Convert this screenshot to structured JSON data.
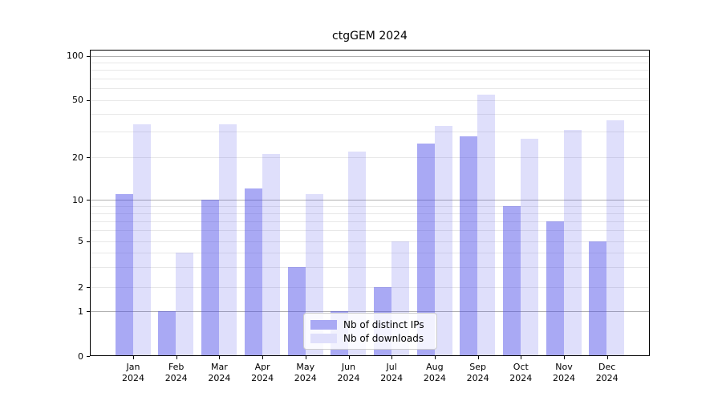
{
  "title": "ctgGEM 2024",
  "legend": {
    "items": [
      {
        "label": "Nb of distinct IPs",
        "color": "#a9a9f4"
      },
      {
        "label": "Nb of downloads",
        "color": "#dfdffb"
      }
    ]
  },
  "y_axis": {
    "tick_labels": [
      "100",
      "50",
      "20",
      "10",
      "5",
      "2",
      "1",
      "0"
    ]
  },
  "x_axis": {
    "months": [
      "Jan",
      "Feb",
      "Mar",
      "Apr",
      "May",
      "Jun",
      "Jul",
      "Aug",
      "Sep",
      "Oct",
      "Nov",
      "Dec"
    ],
    "year": "2024"
  },
  "chart_data": {
    "type": "bar",
    "title": "ctgGEM 2024",
    "categories": [
      "Jan 2024",
      "Feb 2024",
      "Mar 2024",
      "Apr 2024",
      "May 2024",
      "Jun 2024",
      "Jul 2024",
      "Aug 2024",
      "Sep 2024",
      "Oct 2024",
      "Nov 2024",
      "Dec 2024"
    ],
    "series": [
      {
        "name": "Nb of distinct IPs",
        "color": "#a9a9f4",
        "values": [
          11,
          1,
          10,
          12,
          3,
          1,
          2,
          25,
          28,
          9,
          7,
          5
        ]
      },
      {
        "name": "Nb of downloads",
        "color": "#dfdffb",
        "values": [
          34,
          4,
          34,
          21,
          11,
          22,
          5,
          33,
          54,
          27,
          31,
          36
        ]
      }
    ],
    "yscale": "symlog",
    "y_ticks": [
      100,
      50,
      20,
      10,
      5,
      2,
      1,
      0
    ],
    "ylim": [
      0,
      120
    ],
    "grid": "both",
    "legend_position": "lower center inside axes"
  }
}
